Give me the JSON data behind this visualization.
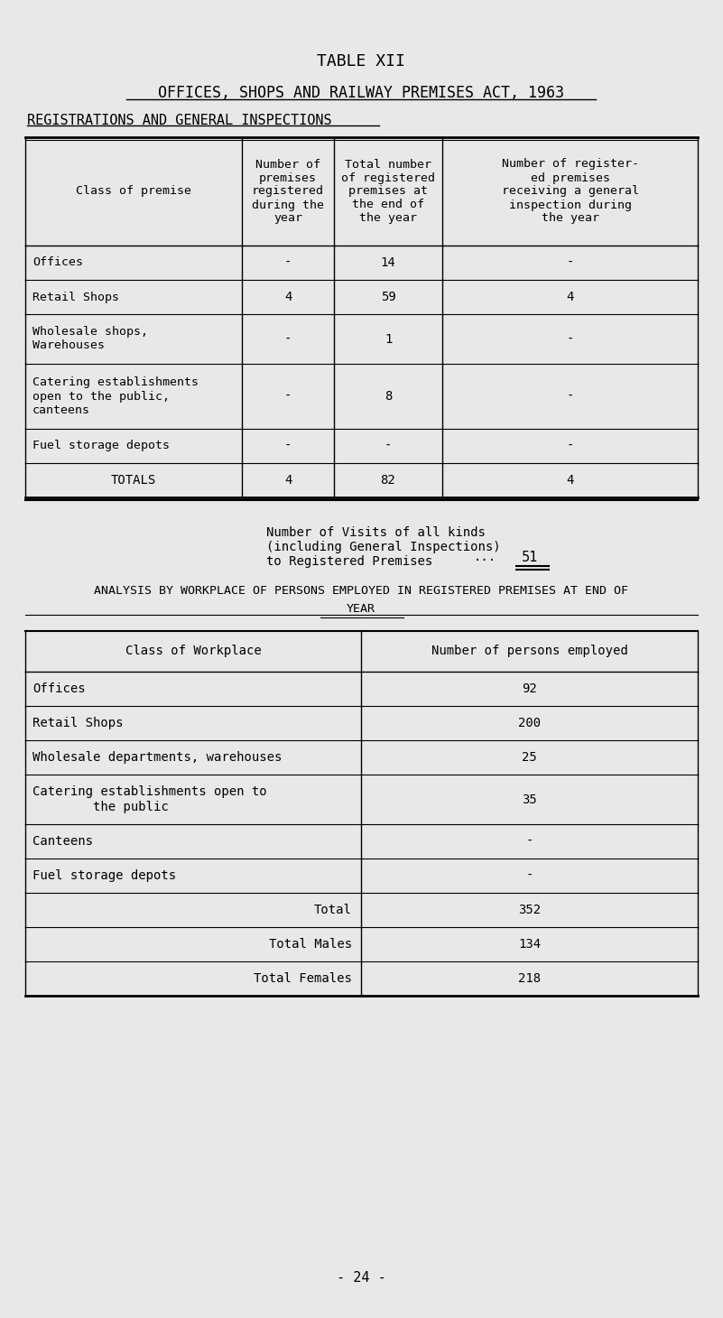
{
  "title1": "TABLE XII",
  "title2": "OFFICES, SHOPS AND RAILWAY PREMISES ACT, 1963",
  "title3": "REGISTRATIONS AND GENERAL INSPECTIONS",
  "table1_headers": [
    "Class of premise",
    "Number of\npremises\nregistered\nduring the\nyear",
    "Total number\nof registered\npremises at\nthe end of\nthe year",
    "Number of register-\ned premises\nreceiving a general\ninspection during\nthe year"
  ],
  "table1_rows": [
    [
      "Offices",
      "-",
      "14",
      "-"
    ],
    [
      "Retail Shops",
      "4",
      "59",
      "4"
    ],
    [
      "Wholesale shops,\nWarehouses",
      "-",
      "1",
      "-"
    ],
    [
      "Catering establishments\nopen to the public,\ncanteens",
      "-",
      "8",
      "-"
    ],
    [
      "Fuel storage depots",
      "-",
      "-",
      "-"
    ],
    [
      "TOTALS",
      "4",
      "82",
      "4"
    ]
  ],
  "visits_text": "Number of Visits of all kinds\n(including General Inspections)\nto Registered Premises",
  "visits_dots": "...",
  "visits_value": "51",
  "title4a": "ANALYSIS BY WORKPLACE OF PERSONS EMPLOYED IN REGISTERED PREMISES AT END OF",
  "title4b": "YEAR",
  "table2_headers": [
    "Class of Workplace",
    "Number of persons employed"
  ],
  "table2_rows": [
    [
      "Offices",
      "92"
    ],
    [
      "Retail Shops",
      "200"
    ],
    [
      "Wholesale departments, warehouses",
      "25"
    ],
    [
      "Catering establishments open to\n        the public",
      "35"
    ],
    [
      "Canteens",
      "-"
    ],
    [
      "Fuel storage depots",
      "-"
    ],
    [
      "TOTAL_Total",
      "352"
    ],
    [
      "TOTAL_Total Males",
      "134"
    ],
    [
      "TOTAL_Total Females",
      "218"
    ]
  ],
  "footer": "- 24 -",
  "bg_color": "#e8e8e8",
  "text_color": "#000000",
  "font_family": "monospace"
}
